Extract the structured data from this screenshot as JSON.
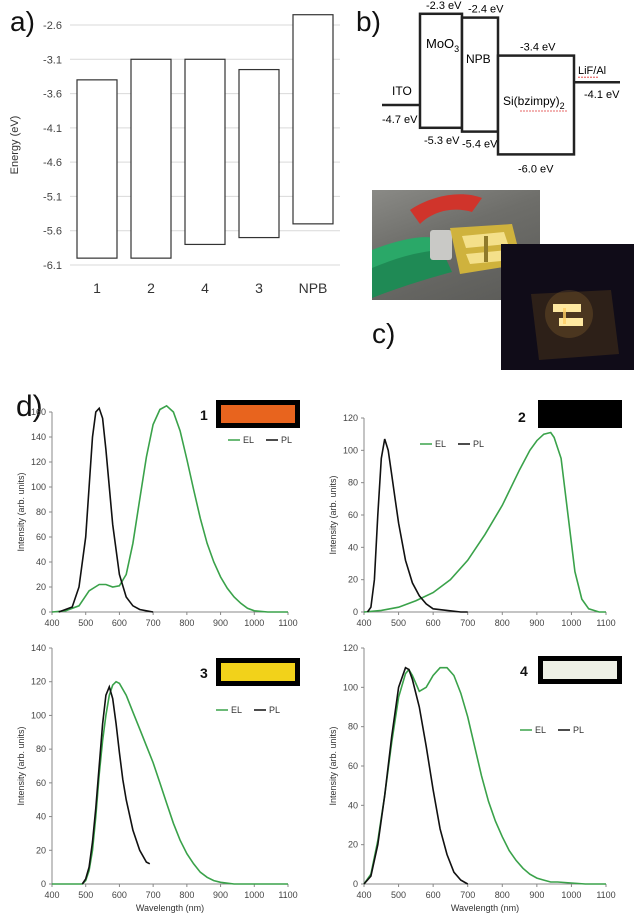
{
  "panels": {
    "a": "a)",
    "b": "b)",
    "c": "c)",
    "d": "d)"
  },
  "chart_data": [
    {
      "id": "a",
      "type": "bar",
      "categories": [
        "1",
        "2",
        "4",
        "3",
        "NPB"
      ],
      "values": [
        [
          -6.0,
          -3.4
        ],
        [
          -6.0,
          -3.1
        ],
        [
          -5.8,
          -3.1
        ],
        [
          -5.7,
          -3.25
        ],
        [
          -5.5,
          -2.45
        ]
      ],
      "ylabel": "Energy (eV)",
      "ylim": [
        -6.1,
        -2.6
      ],
      "yticks": [
        "-2.6",
        "-3.1",
        "-3.6",
        "-4.1",
        "-4.6",
        "-5.1",
        "-5.6",
        "-6.1"
      ],
      "grid": true
    },
    {
      "id": "b",
      "type": "diagram",
      "layers": [
        {
          "name": "ITO",
          "levels": [
            "-4.7 eV"
          ]
        },
        {
          "name": "MoO",
          "sub": "3",
          "levels": [
            "-2.3 eV",
            "-5.3 eV"
          ]
        },
        {
          "name": "NPB",
          "levels": [
            "-2.4 eV",
            "-5.4 eV"
          ]
        },
        {
          "name": "Si(bzimpy)",
          "sub": "2",
          "levels": [
            "-3.4 eV",
            "-6.0 eV"
          ]
        },
        {
          "name": "LiF/Al",
          "levels": [
            "-4.1 eV"
          ]
        }
      ]
    },
    {
      "id": "d1",
      "type": "line",
      "number": "1",
      "swatch": "#e8641e",
      "xlabel": "Wavelength (nm)",
      "ylabel": "Intensity (arb. units)",
      "xlim": [
        400,
        1100
      ],
      "ylim": [
        0,
        160
      ],
      "xticks": [
        "400",
        "500",
        "600",
        "700",
        "800",
        "900",
        "1000",
        "1100"
      ],
      "yticks": [
        "0",
        "20",
        "40",
        "60",
        "80",
        "100",
        "120",
        "140",
        "160"
      ],
      "legend": [
        "EL",
        "PL"
      ],
      "series": [
        {
          "name": "EL",
          "color": "#3aa24a",
          "x": [
            400,
            440,
            480,
            510,
            540,
            560,
            580,
            600,
            620,
            640,
            660,
            680,
            700,
            720,
            740,
            760,
            780,
            800,
            820,
            840,
            860,
            880,
            900,
            920,
            940,
            960,
            980,
            1000,
            1020,
            1040,
            1060,
            1080,
            1100
          ],
          "y": [
            0,
            1,
            5,
            17,
            22,
            22,
            20,
            21,
            30,
            55,
            90,
            124,
            150,
            162,
            165,
            160,
            145,
            122,
            98,
            75,
            55,
            40,
            28,
            19,
            12,
            7,
            3,
            1,
            0.5,
            0,
            0,
            0,
            0
          ]
        },
        {
          "name": "PL",
          "color": "#111111",
          "x": [
            420,
            440,
            460,
            480,
            500,
            510,
            520,
            530,
            540,
            550,
            560,
            570,
            580,
            600,
            620,
            640,
            660,
            680,
            700
          ],
          "y": [
            0,
            2,
            4,
            20,
            60,
            100,
            140,
            160,
            163,
            155,
            130,
            100,
            70,
            30,
            12,
            5,
            2,
            1,
            0
          ]
        }
      ]
    },
    {
      "id": "d2",
      "type": "line",
      "number": "2",
      "swatch": "#000000",
      "xlabel": "Wavelength (nm)",
      "ylabel": "Intensity (arb. units)",
      "xlim": [
        400,
        1100
      ],
      "ylim": [
        0,
        120
      ],
      "xticks": [
        "400",
        "500",
        "600",
        "700",
        "800",
        "900",
        "1000",
        "1100"
      ],
      "yticks": [
        "0",
        "20",
        "40",
        "60",
        "80",
        "100",
        "120"
      ],
      "legend": [
        "EL",
        "PL"
      ],
      "series": [
        {
          "name": "EL",
          "color": "#3aa24a",
          "x": [
            400,
            450,
            500,
            550,
            600,
            650,
            700,
            750,
            800,
            850,
            880,
            900,
            920,
            940,
            950,
            970,
            990,
            1010,
            1030,
            1050,
            1080,
            1100
          ],
          "y": [
            0,
            1,
            3,
            7,
            12,
            20,
            32,
            48,
            66,
            88,
            100,
            106,
            110,
            111,
            108,
            95,
            60,
            25,
            8,
            2,
            0,
            0
          ]
        },
        {
          "name": "PL",
          "color": "#111111",
          "x": [
            410,
            420,
            430,
            440,
            450,
            460,
            470,
            480,
            490,
            500,
            520,
            540,
            560,
            580,
            600,
            640,
            680,
            700
          ],
          "y": [
            0,
            3,
            20,
            60,
            95,
            107,
            100,
            85,
            70,
            55,
            32,
            18,
            10,
            5,
            2,
            1,
            0,
            0
          ]
        }
      ]
    },
    {
      "id": "d3",
      "type": "line",
      "number": "3",
      "swatch": "#f2d21a",
      "xlabel": "Wavelength (nm)",
      "ylabel": "Intensity (arb. units)",
      "xlim": [
        400,
        1100
      ],
      "ylim": [
        0,
        140
      ],
      "xticks": [
        "400",
        "500",
        "600",
        "700",
        "800",
        "900",
        "1000",
        "1100"
      ],
      "yticks": [
        "0",
        "20",
        "40",
        "60",
        "80",
        "100",
        "120",
        "140"
      ],
      "legend": [
        "EL",
        "PL"
      ],
      "series": [
        {
          "name": "EL",
          "color": "#3aa24a",
          "x": [
            400,
            450,
            490,
            500,
            510,
            520,
            530,
            540,
            550,
            560,
            570,
            580,
            590,
            600,
            620,
            640,
            660,
            680,
            700,
            720,
            740,
            760,
            780,
            800,
            820,
            840,
            860,
            880,
            900,
            920,
            940,
            960,
            980,
            1000,
            1040,
            1100
          ],
          "y": [
            0,
            0,
            0,
            2,
            8,
            20,
            40,
            65,
            85,
            100,
            112,
            118,
            120,
            119,
            112,
            102,
            92,
            82,
            72,
            60,
            48,
            36,
            26,
            18,
            12,
            7,
            4,
            2,
            1,
            0.5,
            0,
            0,
            0,
            0,
            0,
            0
          ]
        },
        {
          "name": "PL",
          "color": "#111111",
          "x": [
            490,
            500,
            510,
            520,
            530,
            540,
            550,
            560,
            570,
            580,
            590,
            600,
            610,
            620,
            640,
            660,
            680,
            690
          ],
          "y": [
            0,
            3,
            10,
            25,
            45,
            70,
            95,
            112,
            117,
            110,
            95,
            78,
            62,
            50,
            32,
            20,
            13,
            12
          ]
        }
      ]
    },
    {
      "id": "d4",
      "type": "line",
      "number": "4",
      "swatch": "#eef0e6",
      "xlabel": "Wavelength (nm)",
      "ylabel": "Intensity (arb. units)",
      "xlim": [
        400,
        1100
      ],
      "ylim": [
        0,
        120
      ],
      "xticks": [
        "400",
        "500",
        "600",
        "700",
        "800",
        "900",
        "1000",
        "1100"
      ],
      "yticks": [
        "0",
        "20",
        "40",
        "60",
        "80",
        "100",
        "120"
      ],
      "legend": [
        "EL",
        "PL"
      ],
      "series": [
        {
          "name": "EL",
          "color": "#3aa24a",
          "x": [
            400,
            420,
            440,
            460,
            480,
            500,
            520,
            530,
            540,
            560,
            580,
            600,
            620,
            640,
            660,
            680,
            700,
            720,
            740,
            760,
            780,
            800,
            820,
            840,
            860,
            880,
            900,
            920,
            940,
            960,
            1000,
            1040,
            1100
          ],
          "y": [
            0,
            5,
            22,
            45,
            72,
            95,
            107,
            109,
            106,
            98,
            100,
            106,
            110,
            110,
            106,
            97,
            85,
            70,
            55,
            42,
            32,
            24,
            17,
            12,
            8,
            5,
            3,
            2,
            1,
            1,
            0.5,
            0,
            0
          ]
        },
        {
          "name": "PL",
          "color": "#111111",
          "x": [
            400,
            420,
            440,
            460,
            480,
            500,
            520,
            530,
            540,
            560,
            580,
            600,
            620,
            640,
            660,
            680,
            700
          ],
          "y": [
            0,
            4,
            20,
            45,
            75,
            100,
            110,
            109,
            104,
            90,
            70,
            48,
            28,
            15,
            6,
            2,
            0
          ]
        }
      ]
    }
  ]
}
